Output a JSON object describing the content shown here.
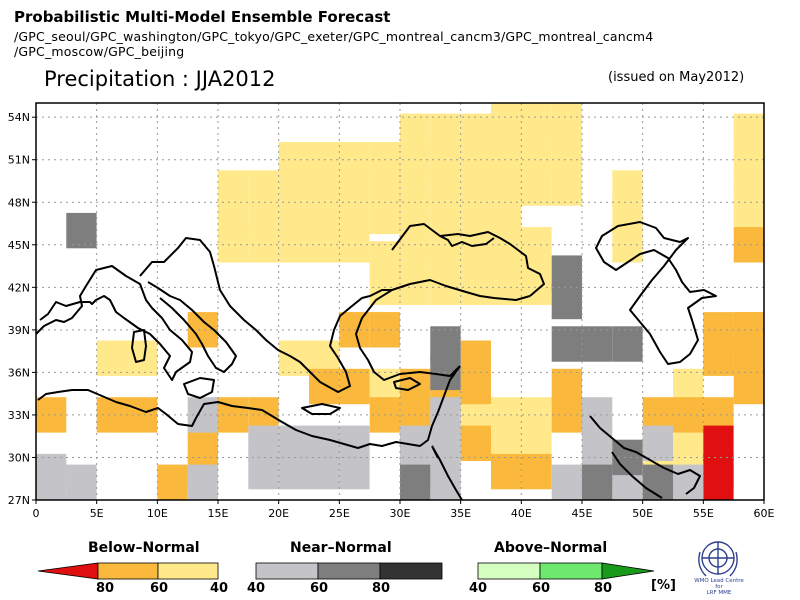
{
  "header": {
    "title": "Probabilistic Multi-Model Ensemble Forecast",
    "models_line1": "/GPC_seoul/GPC_washington/GPC_tokyo/GPC_exeter/GPC_montreal_cancm3/GPC_montreal_cancm4",
    "models_line2": "/GPC_moscow/GPC_beijing"
  },
  "map": {
    "title": "Precipitation : JJA2012",
    "issued": "(issued on May2012)",
    "lon_range": [
      0,
      60
    ],
    "lat_range": [
      27,
      55
    ],
    "grid": "dashed",
    "lon_ticks": [
      "0",
      "5E",
      "10E",
      "15E",
      "20E",
      "25E",
      "30E",
      "35E",
      "40E",
      "45E",
      "50E",
      "55E",
      "60E"
    ],
    "lat_ticks": [
      "27N",
      "30N",
      "33N",
      "36N",
      "39N",
      "42N",
      "45N",
      "48N",
      "51N",
      "54N"
    ]
  },
  "legend": {
    "below": {
      "label": "Below–Normal",
      "ticks": [
        "80",
        "60",
        "40"
      ],
      "colors": [
        "#e01010",
        "#fab93d",
        "#ffe98a"
      ]
    },
    "near": {
      "label": "Near–Normal",
      "ticks": [
        "40",
        "60",
        "80"
      ],
      "colors": [
        "#c4c4c8",
        "#7e7e7e",
        "#333333"
      ]
    },
    "above": {
      "label": "Above–Normal",
      "ticks": [
        "40",
        "60",
        "80"
      ],
      "colors": [
        "#d4ffc0",
        "#6ee86e",
        "#1a9a1a"
      ]
    },
    "unit": "[%]"
  },
  "logo": {
    "caption_line1": "WMO Lead Centre for",
    "caption_line2": "LRF MME"
  },
  "grid_cells": [
    {
      "lat": 54,
      "lons": [
        37.5,
        40,
        42.5
      ],
      "cls": "b40"
    },
    {
      "lat": 53,
      "lons": [
        30,
        32.5,
        35,
        37.5,
        40,
        42.5,
        58
      ],
      "cls": "b40"
    },
    {
      "lat": 51,
      "lons": [
        20,
        22.5,
        25,
        27.5,
        30,
        32.5,
        35,
        37.5,
        40,
        42.5,
        58
      ],
      "cls": "b40"
    },
    {
      "lat": 49,
      "lons": [
        15,
        17.5,
        20,
        22.5,
        25,
        27.5,
        30,
        32.5,
        35,
        37.5,
        40,
        42.5,
        47.5,
        57.5
      ],
      "cls": "b40"
    },
    {
      "lat": 47,
      "lons": [
        15,
        17.5,
        20,
        22.5,
        25,
        27.5,
        30,
        32.5,
        35,
        37.5,
        47.5,
        57.5
      ],
      "cls": "b40"
    },
    {
      "lat": 45,
      "lons": [
        15,
        17.5,
        20,
        22.5,
        25,
        30,
        32.5,
        35,
        37.5,
        40,
        47.5
      ],
      "cls": "b40"
    },
    {
      "lat": 44,
      "lons": [
        27.5,
        30,
        32.5,
        35,
        37.5,
        40
      ],
      "cls": "b40"
    },
    {
      "lat": 42,
      "lons": [
        27.5,
        30,
        32.5,
        35,
        37.5,
        40
      ],
      "cls": "b40"
    },
    {
      "lat": 39,
      "lons": [
        25,
        27.5
      ],
      "cls": "b40"
    },
    {
      "lat": 37,
      "lons": [
        5,
        7.5,
        20,
        22.5,
        35
      ],
      "cls": "b40"
    },
    {
      "lat": 35,
      "lons": [
        27.5,
        35,
        52.5
      ],
      "cls": "b40"
    },
    {
      "lat": 33,
      "lons": [
        35,
        37.5,
        40,
        52.5
      ],
      "cls": "b40"
    },
    {
      "lat": 31,
      "lons": [
        35,
        37.5,
        40,
        50,
        52.5
      ],
      "cls": "b40"
    },
    {
      "lat": 29,
      "lons": [
        50,
        52.5
      ],
      "cls": "b40"
    },
    {
      "lat": 45,
      "lons": [
        60
      ],
      "cls": "b60"
    },
    {
      "lat": 39,
      "lons": [
        12.5,
        25,
        27.5,
        55,
        57.5,
        60
      ],
      "cls": "b60"
    },
    {
      "lat": 37,
      "lons": [
        35,
        55,
        57.5,
        60
      ],
      "cls": "b60"
    },
    {
      "lat": 35,
      "lons": [
        22.5,
        25,
        30,
        32.5,
        35,
        42.5,
        57.5
      ],
      "cls": "b60"
    },
    {
      "lat": 33,
      "lons": [
        0,
        5,
        7.5,
        15,
        17.5,
        27.5,
        30,
        32.5,
        42.5,
        50,
        52.5,
        55
      ],
      "cls": "b60"
    },
    {
      "lat": 31,
      "lons": [
        12.5,
        35
      ],
      "cls": "b60"
    },
    {
      "lat": 29,
      "lons": [
        12.5,
        37.5,
        40
      ],
      "cls": "b60"
    },
    {
      "lat": 27,
      "lons": [
        10
      ],
      "cls": "b60"
    },
    {
      "lat": 31,
      "lons": [
        55
      ],
      "cls": "b80"
    },
    {
      "lat": 29,
      "lons": [
        55
      ],
      "cls": "b80"
    },
    {
      "lat": 27,
      "lons": [
        55
      ],
      "cls": "b80"
    },
    {
      "lat": 31,
      "lons": [
        45,
        50
      ],
      "cls": "n40"
    },
    {
      "lat": 33,
      "lons": [
        12.5,
        32.5,
        45
      ],
      "cls": "n40"
    },
    {
      "lat": 31,
      "lons": [
        17.5,
        20,
        22.5,
        25,
        30,
        32.5
      ],
      "cls": "n40"
    },
    {
      "lat": 29,
      "lons": [
        0,
        17.5,
        20,
        22.5,
        25,
        30,
        32.5,
        45
      ],
      "cls": "n40"
    },
    {
      "lat": 27,
      "lons": [
        0,
        2.5,
        12.5,
        32.5,
        42.5,
        47.5,
        52.5
      ],
      "cls": "n40"
    },
    {
      "lat": 46,
      "lons": [
        2.5
      ],
      "cls": "n60"
    },
    {
      "lat": 43,
      "lons": [
        42.5
      ],
      "cls": "n60"
    },
    {
      "lat": 41,
      "lons": [
        42.5
      ],
      "cls": "n60"
    },
    {
      "lat": 38,
      "lons": [
        42.5,
        45,
        47.5
      ],
      "cls": "n60"
    },
    {
      "lat": 38,
      "lons": [
        32.5
      ],
      "cls": "n60"
    },
    {
      "lat": 36,
      "lons": [
        32.5
      ],
      "cls": "n60"
    },
    {
      "lat": 30,
      "lons": [
        47.5
      ],
      "cls": "n60"
    },
    {
      "lat": 28,
      "lons": [
        30,
        45,
        50
      ],
      "cls": "n60"
    }
  ]
}
